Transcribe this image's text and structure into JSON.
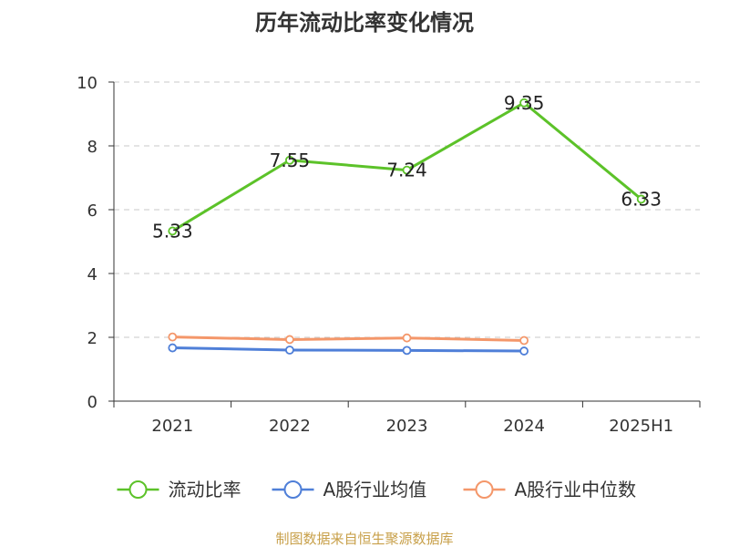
{
  "chart_data": {
    "type": "line",
    "title": "历年流动比率变化情况",
    "categories": [
      "2021",
      "2022",
      "2023",
      "2024",
      "2025H1"
    ],
    "ylim": [
      0,
      10
    ],
    "yticks": [
      0,
      2,
      4,
      6,
      8,
      10
    ],
    "grid": true,
    "legend_position": "bottom",
    "series": [
      {
        "name": "流动比率",
        "color": "#5cc229",
        "values": [
          5.33,
          7.55,
          7.24,
          9.35,
          6.33
        ],
        "labels": [
          "5.33",
          "7.55",
          "7.24",
          "9.35",
          "6.33"
        ],
        "show_labels": true
      },
      {
        "name": "A股行业均值",
        "color": "#4f7fd8",
        "values": [
          1.67,
          1.6,
          1.59,
          1.57,
          null
        ],
        "show_labels": false
      },
      {
        "name": "A股行业中位数",
        "color": "#f4976a",
        "values": [
          2.01,
          1.93,
          1.98,
          1.9,
          null
        ],
        "show_labels": false
      }
    ],
    "source": "制图数据来自恒生聚源数据库"
  }
}
